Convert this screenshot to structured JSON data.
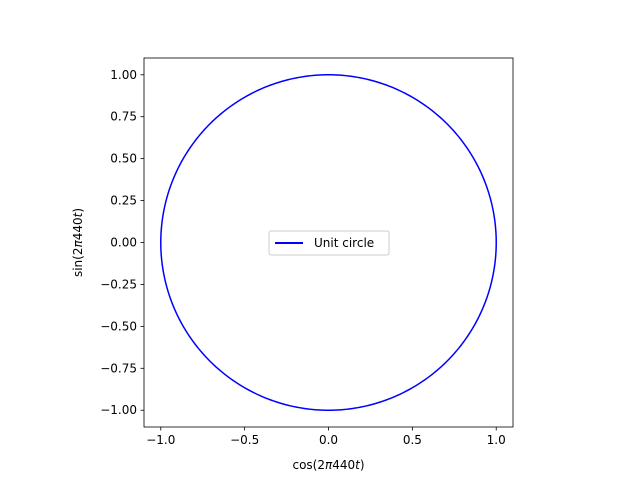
{
  "chart_data": {
    "type": "line",
    "title": "",
    "xlabel": "cos(2π440t)",
    "ylabel": "sin(2π440t)",
    "xlim": [
      -1.1,
      1.1
    ],
    "ylim": [
      -1.1,
      1.1
    ],
    "x_ticks": [
      -1.0,
      -0.5,
      0.0,
      0.5,
      1.0
    ],
    "x_tick_labels": [
      "−1.0",
      "−0.5",
      "0.0",
      "0.5",
      "1.0"
    ],
    "y_ticks": [
      -1.0,
      -0.75,
      -0.5,
      -0.25,
      0.0,
      0.25,
      0.5,
      0.75,
      1.0
    ],
    "y_tick_labels": [
      "−1.00",
      "−0.75",
      "−0.50",
      "−0.25",
      "0.00",
      "0.25",
      "0.50",
      "0.75",
      "1.00"
    ],
    "grid": false,
    "legend_position": "center",
    "aspect": "equal",
    "series": [
      {
        "name": "Unit circle",
        "color": "#0000ff",
        "shape": "circle",
        "center": [
          0,
          0
        ],
        "radius": 1.0
      }
    ]
  }
}
